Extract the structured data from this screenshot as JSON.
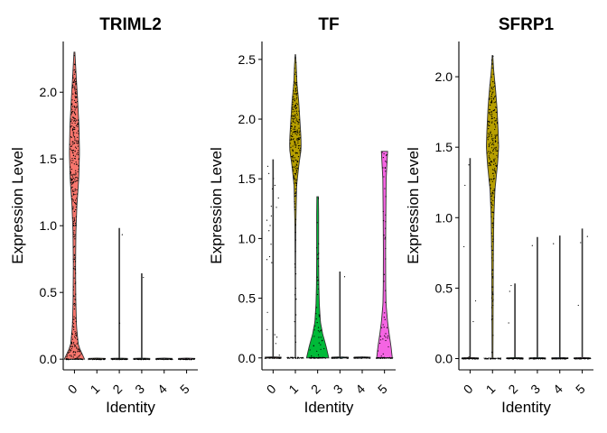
{
  "chart_data": [
    {
      "type": "violin",
      "title": "TRIML2",
      "xlabel": "Identity",
      "ylabel": "Expression Level",
      "categories": [
        "0",
        "1",
        "2",
        "3",
        "4",
        "5"
      ],
      "ylim": [
        -0.08,
        2.38
      ],
      "yticks": [
        "0.0",
        "0.5",
        "1.0",
        "1.5",
        "2.0"
      ],
      "ytick_values": [
        0,
        0.5,
        1.0,
        1.5,
        2.0
      ],
      "colors": [
        "#F8766D",
        "#B79F00",
        "#00BA38",
        "#00BFC4",
        "#619CFF",
        "#F564E3"
      ],
      "series": [
        {
          "name": "0",
          "max": 2.3,
          "n_points": 360,
          "profile": [
            [
              0,
              0.9
            ],
            [
              0.1,
              0.35
            ],
            [
              0.25,
              0.18
            ],
            [
              0.45,
              0.12
            ],
            [
              0.7,
              0.1
            ],
            [
              0.95,
              0.13
            ],
            [
              1.15,
              0.22
            ],
            [
              1.35,
              0.38
            ],
            [
              1.55,
              0.45
            ],
            [
              1.75,
              0.4
            ],
            [
              1.95,
              0.28
            ],
            [
              2.1,
              0.17
            ],
            [
              2.3,
              0.04
            ]
          ]
        },
        {
          "name": "1",
          "max": 0.0,
          "n_points": 0,
          "profile": []
        },
        {
          "name": "2",
          "max": 0.98,
          "n_points": 2,
          "profile": []
        },
        {
          "name": "3",
          "max": 0.64,
          "n_points": 1,
          "profile": []
        },
        {
          "name": "4",
          "max": 0.0,
          "n_points": 0,
          "profile": []
        },
        {
          "name": "5",
          "max": 0.0,
          "n_points": 0,
          "profile": []
        }
      ]
    },
    {
      "type": "violin",
      "title": "TF",
      "xlabel": "Identity",
      "ylabel": "Expression Level",
      "categories": [
        "0",
        "1",
        "2",
        "3",
        "4",
        "5"
      ],
      "ylim": [
        -0.1,
        2.65
      ],
      "yticks": [
        "0.0",
        "0.5",
        "1.0",
        "1.5",
        "2.0",
        "2.5"
      ],
      "ytick_values": [
        0,
        0.5,
        1.0,
        1.5,
        2.0,
        2.5
      ],
      "colors": [
        "#F8766D",
        "#B79F00",
        "#00BA38",
        "#00BFC4",
        "#619CFF",
        "#F564E3"
      ],
      "series": [
        {
          "name": "0",
          "max": 1.66,
          "n_points": 22,
          "profile": []
        },
        {
          "name": "1",
          "max": 2.54,
          "n_points": 230,
          "profile": [
            [
              0.67,
              0.02
            ],
            [
              1.1,
              0.04
            ],
            [
              1.45,
              0.12
            ],
            [
              1.62,
              0.32
            ],
            [
              1.75,
              0.52
            ],
            [
              1.85,
              0.5
            ],
            [
              2.0,
              0.4
            ],
            [
              2.15,
              0.3
            ],
            [
              2.3,
              0.14
            ],
            [
              2.45,
              0.08
            ],
            [
              2.54,
              0.02
            ]
          ]
        },
        {
          "name": "2",
          "max": 1.35,
          "n_points": 45,
          "profile": [
            [
              0,
              1.0
            ],
            [
              0.1,
              0.75
            ],
            [
              0.2,
              0.45
            ],
            [
              0.3,
              0.25
            ],
            [
              0.45,
              0.15
            ],
            [
              0.6,
              0.11
            ],
            [
              0.8,
              0.09
            ],
            [
              1.0,
              0.09
            ],
            [
              1.2,
              0.09
            ],
            [
              1.35,
              0.07
            ]
          ]
        },
        {
          "name": "3",
          "max": 0.72,
          "n_points": 1,
          "profile": []
        },
        {
          "name": "4",
          "max": 0.0,
          "n_points": 0,
          "profile": []
        },
        {
          "name": "5",
          "max": 1.73,
          "n_points": 50,
          "profile": [
            [
              0,
              0.7
            ],
            [
              0.1,
              0.58
            ],
            [
              0.2,
              0.42
            ],
            [
              0.3,
              0.28
            ],
            [
              0.45,
              0.14
            ],
            [
              0.6,
              0.11
            ],
            [
              0.9,
              0.1
            ],
            [
              1.2,
              0.12
            ],
            [
              1.5,
              0.15
            ],
            [
              1.73,
              0.28
            ]
          ]
        }
      ]
    },
    {
      "type": "violin",
      "title": "SFRP1",
      "xlabel": "Identity",
      "ylabel": "Expression Level",
      "categories": [
        "0",
        "1",
        "2",
        "3",
        "4",
        "5"
      ],
      "ylim": [
        -0.08,
        2.25
      ],
      "yticks": [
        "0.0",
        "0.5",
        "1.0",
        "1.5",
        "2.0"
      ],
      "ytick_values": [
        0,
        0.5,
        1.0,
        1.5,
        2.0
      ],
      "colors": [
        "#F8766D",
        "#B79F00",
        "#00BA38",
        "#00BFC4",
        "#619CFF",
        "#F564E3"
      ],
      "series": [
        {
          "name": "0",
          "max": 1.42,
          "n_points": 6,
          "profile": []
        },
        {
          "name": "1",
          "max": 2.15,
          "n_points": 240,
          "profile": [
            [
              0,
              0.04
            ],
            [
              0.4,
              0.06
            ],
            [
              0.75,
              0.08
            ],
            [
              1.0,
              0.12
            ],
            [
              1.2,
              0.22
            ],
            [
              1.38,
              0.45
            ],
            [
              1.5,
              0.55
            ],
            [
              1.62,
              0.5
            ],
            [
              1.78,
              0.4
            ],
            [
              1.92,
              0.26
            ],
            [
              2.05,
              0.1
            ],
            [
              2.15,
              0.03
            ]
          ]
        },
        {
          "name": "2",
          "max": 0.53,
          "n_points": 3,
          "profile": []
        },
        {
          "name": "3",
          "max": 0.86,
          "n_points": 1,
          "profile": []
        },
        {
          "name": "4",
          "max": 0.87,
          "n_points": 1,
          "profile": []
        },
        {
          "name": "5",
          "max": 0.92,
          "n_points": 3,
          "profile": []
        }
      ]
    }
  ]
}
